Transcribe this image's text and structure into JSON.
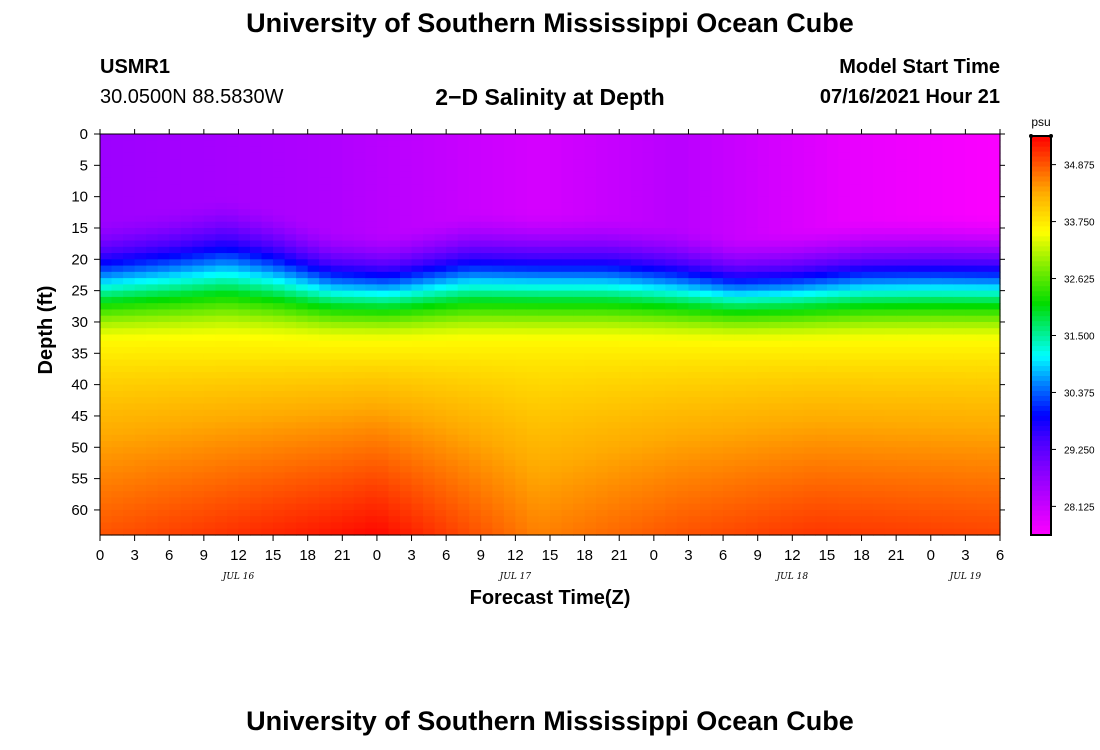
{
  "header": {
    "top_title": "University of Southern Mississippi Ocean Cube",
    "bottom_title": "University of Southern Mississippi Ocean Cube",
    "station_id": "USMR1",
    "station_coords": "30.0500N  88.5830W",
    "chart_title": "2−D Salinity at Depth",
    "start_time_label": "Model Start Time",
    "start_time_value": "07/16/2021 Hour 21"
  },
  "colors": {
    "background": "#ffffff",
    "axis": "#000000"
  },
  "chart_data": {
    "type": "heatmap",
    "title": "2−D Salinity at Depth",
    "xlabel": "Forecast Time(Z)",
    "ylabel": "Depth (ft)",
    "x_range_hours": [
      0,
      78
    ],
    "ylim": [
      0,
      64
    ],
    "y_inverted": true,
    "x_ticks": [
      {
        "hour": 0,
        "label": "0"
      },
      {
        "hour": 3,
        "label": "3"
      },
      {
        "hour": 6,
        "label": "6"
      },
      {
        "hour": 9,
        "label": "9"
      },
      {
        "hour": 12,
        "label": "12"
      },
      {
        "hour": 15,
        "label": "15"
      },
      {
        "hour": 18,
        "label": "18"
      },
      {
        "hour": 21,
        "label": "21"
      },
      {
        "hour": 24,
        "label": "0"
      },
      {
        "hour": 27,
        "label": "3"
      },
      {
        "hour": 30,
        "label": "6"
      },
      {
        "hour": 33,
        "label": "9"
      },
      {
        "hour": 36,
        "label": "12"
      },
      {
        "hour": 39,
        "label": "15"
      },
      {
        "hour": 42,
        "label": "18"
      },
      {
        "hour": 45,
        "label": "21"
      },
      {
        "hour": 48,
        "label": "0"
      },
      {
        "hour": 51,
        "label": "3"
      },
      {
        "hour": 54,
        "label": "6"
      },
      {
        "hour": 57,
        "label": "9"
      },
      {
        "hour": 60,
        "label": "12"
      },
      {
        "hour": 63,
        "label": "15"
      },
      {
        "hour": 66,
        "label": "18"
      },
      {
        "hour": 69,
        "label": "21"
      },
      {
        "hour": 72,
        "label": "0"
      },
      {
        "hour": 75,
        "label": "3"
      },
      {
        "hour": 78,
        "label": "6"
      }
    ],
    "date_labels": [
      {
        "hour": 12,
        "label": "JUL 16"
      },
      {
        "hour": 36,
        "label": "JUL 17"
      },
      {
        "hour": 60,
        "label": "JUL 18"
      },
      {
        "hour": 75,
        "label": "JUL 19"
      }
    ],
    "y_ticks": [
      0,
      5,
      10,
      15,
      20,
      25,
      30,
      35,
      40,
      45,
      50,
      55,
      60
    ],
    "colorbar": {
      "unit": "psu",
      "min": 27.56,
      "max": 35.44,
      "tick_values": [
        34.875,
        33.75,
        32.625,
        31.5,
        30.375,
        29.25,
        28.125
      ],
      "tick_labels": [
        "34.875",
        "33.750",
        "32.625",
        "31.500",
        "30.375",
        "29.250",
        "28.125"
      ]
    },
    "halocline_depth_ft": [
      {
        "hour": 0,
        "depth": 19.5
      },
      {
        "hour": 6,
        "depth": 17.5
      },
      {
        "hour": 11,
        "depth": 15.5
      },
      {
        "hour": 15,
        "depth": 17.5
      },
      {
        "hour": 20,
        "depth": 21
      },
      {
        "hour": 25,
        "depth": 21.5
      },
      {
        "hour": 32,
        "depth": 18
      },
      {
        "hour": 38,
        "depth": 18
      },
      {
        "hour": 44,
        "depth": 18.5
      },
      {
        "hour": 50,
        "depth": 20.5
      },
      {
        "hour": 55,
        "depth": 22
      },
      {
        "hour": 60,
        "depth": 21
      },
      {
        "hour": 66,
        "depth": 19
      },
      {
        "hour": 72,
        "depth": 18.5
      },
      {
        "hour": 78,
        "depth": 18.5
      }
    ],
    "surface_salinity_psu": [
      {
        "hour": 0,
        "value": 28.6
      },
      {
        "hour": 20,
        "value": 28.4
      },
      {
        "hour": 38,
        "value": 28.0
      },
      {
        "hour": 50,
        "value": 28.3
      },
      {
        "hour": 65,
        "value": 27.8
      },
      {
        "hour": 78,
        "value": 27.6
      }
    ],
    "bottom_salinity_psu": [
      {
        "hour": 0,
        "value": 34.9
      },
      {
        "hour": 20,
        "value": 35.3
      },
      {
        "hour": 24,
        "value": 35.4
      },
      {
        "hour": 38,
        "value": 34.6
      },
      {
        "hour": 50,
        "value": 34.9
      },
      {
        "hour": 62,
        "value": 35.1
      },
      {
        "hour": 78,
        "value": 35.0
      }
    ],
    "midlayer_salinity_psu": 33.7,
    "midlayer_depth_ft": 35
  }
}
